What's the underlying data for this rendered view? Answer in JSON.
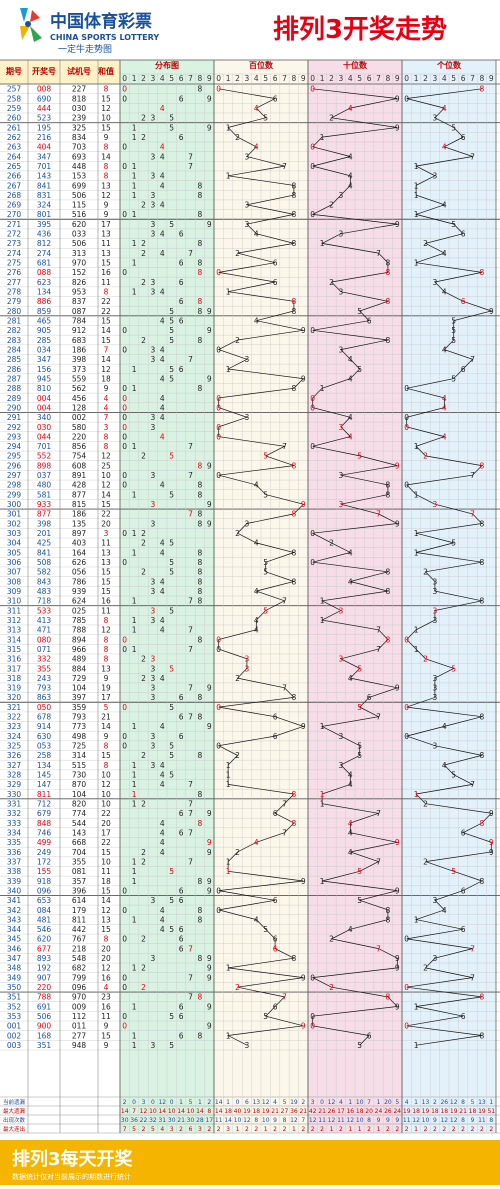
{
  "header": {
    "brand_cn": "中国体育彩票",
    "brand_en": "CHINA SPORTS LOTTERY",
    "slogan": "一定牛走势图",
    "title": "排列3开奖走势"
  },
  "columns": {
    "issue": "期号",
    "draw": "开奖号",
    "test": "试机号",
    "sum": "和值",
    "dist": "分布图",
    "hundreds": "百位数",
    "tens": "十位数",
    "units": "个位数"
  },
  "digits": [
    "0",
    "1",
    "2",
    "3",
    "4",
    "5",
    "6",
    "7",
    "8",
    "9"
  ],
  "footer_labels": [
    "当前遗漏",
    "最大遗漏",
    "出现次数",
    "最大连出"
  ],
  "footer_banner": "排列3每天开奖",
  "footer_note": "数据统计仅对当前展示的期数进行统计",
  "colors": {
    "title_red": "#e60012",
    "dist_bg": "#d9f2e2",
    "hundreds_bg": "#fbf7ea",
    "tens_bg": "#f6dde8",
    "units_bg": "#e3f1fa",
    "banner": "#f4b400"
  },
  "chart_data": {
    "type": "table",
    "rows": [
      [
        "257",
        "008",
        "227"
      ],
      [
        "258",
        "690",
        "818"
      ],
      [
        "259",
        "444",
        "030"
      ],
      [
        "260",
        "523",
        "239"
      ],
      [
        "261",
        "195",
        "325"
      ],
      [
        "262",
        "216",
        "834"
      ],
      [
        "263",
        "404",
        "703"
      ],
      [
        "264",
        "347",
        "693"
      ],
      [
        "265",
        "701",
        "448"
      ],
      [
        "266",
        "143",
        "153"
      ],
      [
        "267",
        "841",
        "699"
      ],
      [
        "268",
        "831",
        "506"
      ],
      [
        "269",
        "324",
        "115"
      ],
      [
        "270",
        "801",
        "516"
      ],
      [
        "271",
        "395",
        "620"
      ],
      [
        "272",
        "436",
        "033"
      ],
      [
        "273",
        "812",
        "506"
      ],
      [
        "274",
        "274",
        "313"
      ],
      [
        "275",
        "681",
        "970"
      ],
      [
        "276",
        "088",
        "152"
      ],
      [
        "277",
        "623",
        "826"
      ],
      [
        "278",
        "134",
        "953"
      ],
      [
        "279",
        "886",
        "837"
      ],
      [
        "280",
        "859",
        "087"
      ],
      [
        "281",
        "465",
        "784"
      ],
      [
        "282",
        "905",
        "912"
      ],
      [
        "283",
        "285",
        "683"
      ],
      [
        "284",
        "034",
        "186"
      ],
      [
        "285",
        "347",
        "398"
      ],
      [
        "286",
        "156",
        "373"
      ],
      [
        "287",
        "945",
        "559"
      ],
      [
        "288",
        "810",
        "562"
      ],
      [
        "289",
        "004",
        "456"
      ],
      [
        "290",
        "004",
        "128"
      ],
      [
        "291",
        "340",
        "002"
      ],
      [
        "292",
        "030",
        "580"
      ],
      [
        "293",
        "044",
        "220"
      ],
      [
        "294",
        "701",
        "856"
      ],
      [
        "295",
        "552",
        "754"
      ],
      [
        "296",
        "898",
        "608"
      ],
      [
        "297",
        "037",
        "891"
      ],
      [
        "298",
        "480",
        "428"
      ],
      [
        "299",
        "581",
        "877"
      ],
      [
        "300",
        "933",
        "815"
      ],
      [
        "301",
        "877",
        "186"
      ],
      [
        "302",
        "398",
        "135"
      ],
      [
        "303",
        "201",
        "897"
      ],
      [
        "304",
        "425",
        "403"
      ],
      [
        "305",
        "841",
        "164"
      ],
      [
        "306",
        "508",
        "626"
      ],
      [
        "307",
        "582",
        "056"
      ],
      [
        "308",
        "843",
        "786"
      ],
      [
        "309",
        "483",
        "939"
      ],
      [
        "310",
        "718",
        "624"
      ],
      [
        "311",
        "533",
        "025"
      ],
      [
        "312",
        "413",
        "785"
      ],
      [
        "313",
        "471",
        "788"
      ],
      [
        "314",
        "080",
        "894"
      ],
      [
        "315",
        "071",
        "966"
      ],
      [
        "316",
        "332",
        "489"
      ],
      [
        "317",
        "355",
        "884"
      ],
      [
        "318",
        "243",
        "729"
      ],
      [
        "319",
        "793",
        "104"
      ],
      [
        "320",
        "863",
        "397"
      ],
      [
        "321",
        "050",
        "359"
      ],
      [
        "322",
        "678",
        "793"
      ],
      [
        "323",
        "914",
        "773"
      ],
      [
        "324",
        "630",
        "498"
      ],
      [
        "325",
        "053",
        "725"
      ],
      [
        "326",
        "258",
        "314"
      ],
      [
        "327",
        "134",
        "515"
      ],
      [
        "328",
        "145",
        "730"
      ],
      [
        "329",
        "147",
        "870"
      ],
      [
        "330",
        "811",
        "104"
      ],
      [
        "331",
        "712",
        "820"
      ],
      [
        "332",
        "679",
        "774"
      ],
      [
        "333",
        "848",
        "544"
      ],
      [
        "334",
        "746",
        "143"
      ],
      [
        "335",
        "499",
        "668"
      ],
      [
        "336",
        "249",
        "704"
      ],
      [
        "337",
        "172",
        "355"
      ],
      [
        "338",
        "155",
        "081"
      ],
      [
        "339",
        "918",
        "357"
      ],
      [
        "340",
        "096",
        "396"
      ],
      [
        "341",
        "653",
        "614"
      ],
      [
        "342",
        "084",
        "179"
      ],
      [
        "343",
        "481",
        "811"
      ],
      [
        "344",
        "546",
        "442"
      ],
      [
        "345",
        "620",
        "767"
      ],
      [
        "346",
        "677",
        "218"
      ],
      [
        "347",
        "893",
        "548"
      ],
      [
        "348",
        "192",
        "682"
      ],
      [
        "349",
        "907",
        "799"
      ],
      [
        "350",
        "220",
        "096"
      ],
      [
        "351",
        "788",
        "970"
      ],
      [
        "352",
        "691",
        "009"
      ],
      [
        "353",
        "506",
        "112"
      ],
      [
        "001",
        "900",
        "011"
      ],
      [
        "002",
        "168",
        "277"
      ],
      [
        "003",
        "351",
        "948"
      ]
    ],
    "stats": {
      "current_omission": [
        [
          2,
          0,
          3,
          0,
          12,
          0,
          1,
          5,
          1,
          2
        ],
        [
          14,
          1,
          0,
          6,
          13,
          12,
          4,
          5,
          19,
          2
        ],
        [
          3,
          0,
          12,
          4,
          1,
          10,
          7,
          1,
          20,
          5
        ],
        [
          4,
          1,
          13,
          2,
          26,
          12,
          8,
          5,
          13,
          1
        ]
      ],
      "max_omission": [
        [
          14,
          7,
          12,
          10,
          14,
          10,
          14,
          10,
          14,
          8
        ],
        [
          14,
          18,
          40,
          19,
          18,
          19,
          21,
          27,
          36,
          21
        ],
        [
          42,
          21,
          26,
          17,
          16,
          18,
          20,
          24,
          26,
          24
        ],
        [
          19,
          18,
          19,
          18,
          18,
          19,
          21,
          18,
          19,
          51
        ]
      ],
      "occurrences": [
        [
          30,
          36,
          22,
          32,
          31,
          30,
          21,
          30,
          28,
          17
        ],
        [
          11,
          14,
          10,
          12,
          8,
          10,
          9,
          8,
          12,
          7
        ],
        [
          12,
          11,
          12,
          11,
          12,
          10,
          8,
          9,
          9,
          9
        ],
        [
          11,
          12,
          10,
          9,
          12,
          12,
          8,
          9,
          11,
          8
        ]
      ],
      "max_consecutive": [
        [
          7,
          5,
          2,
          5,
          4,
          3,
          2,
          6,
          3,
          2
        ],
        [
          2,
          3,
          1,
          2,
          2,
          1,
          2,
          2,
          1,
          2
        ],
        [
          2,
          2,
          1,
          2,
          1,
          1,
          2,
          1,
          2,
          2
        ],
        [
          2,
          1,
          2,
          2,
          2,
          2,
          2,
          2,
          2,
          2
        ]
      ]
    }
  }
}
